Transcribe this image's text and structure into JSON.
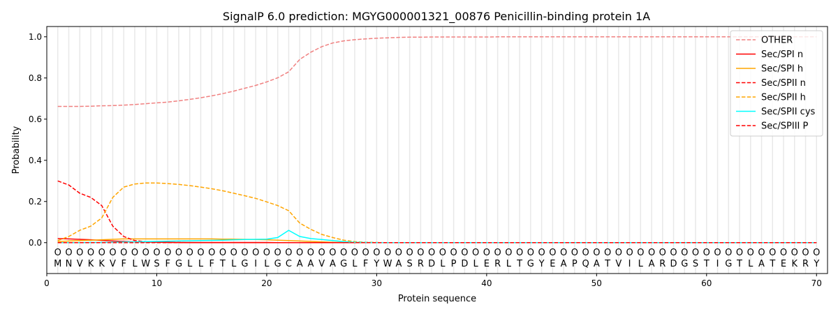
{
  "chart_data": {
    "type": "line",
    "title": "SignalP 6.0 prediction: MGYG000001321_00876 Penicillin-binding protein 1A",
    "xlabel": "Protein sequence",
    "ylabel": "Probability",
    "xlim": [
      0,
      71
    ],
    "ylim": [
      -0.15,
      1.05
    ],
    "xticks": [
      0,
      10,
      20,
      30,
      40,
      50,
      60,
      70
    ],
    "yticks": [
      "0.0",
      "0.2",
      "0.4",
      "0.6",
      "0.8",
      "1.0"
    ],
    "sequence": "MNVKKVFLWSFGLLFTLGILGCAAVAGLFYWASRDLPDLERLTGYEAPQATVILARDGSTIGTLATEKRY",
    "region_label": "O",
    "legend_position": "top-right",
    "series": [
      {
        "name": "OTHER",
        "color": "#f08080",
        "dash": true,
        "values": [
          0.662,
          0.662,
          0.662,
          0.663,
          0.665,
          0.666,
          0.668,
          0.671,
          0.675,
          0.679,
          0.683,
          0.689,
          0.696,
          0.704,
          0.713,
          0.724,
          0.736,
          0.75,
          0.764,
          0.781,
          0.801,
          0.83,
          0.89,
          0.925,
          0.952,
          0.97,
          0.98,
          0.986,
          0.99,
          0.993,
          0.995,
          0.997,
          0.998,
          0.998,
          0.999,
          0.999,
          0.999,
          0.999,
          0.999,
          0.999,
          1,
          1,
          1,
          1,
          1,
          1,
          1,
          1,
          1,
          1,
          1,
          1,
          1,
          1,
          1,
          1,
          1,
          1,
          1,
          1,
          1,
          1,
          1,
          1,
          1,
          1,
          1,
          1,
          1,
          1
        ]
      },
      {
        "name": "Sec/SPI n",
        "color": "#ff0000",
        "dash": false,
        "values": [
          0.02,
          0.018,
          0.016,
          0.014,
          0.011,
          0.008,
          0.006,
          0.004,
          0.003,
          0.002,
          0.002,
          0.001,
          0.001,
          0.001,
          0.001,
          0.001,
          0.001,
          0.001,
          0.001,
          0.001,
          0,
          0,
          0,
          0,
          0,
          0,
          0,
          0,
          0,
          0,
          0,
          0,
          0,
          0,
          0,
          0,
          0,
          0,
          0,
          0,
          0,
          0,
          0,
          0,
          0,
          0,
          0,
          0,
          0,
          0,
          0,
          0,
          0,
          0,
          0,
          0,
          0,
          0,
          0,
          0,
          0,
          0,
          0,
          0,
          0,
          0,
          0,
          0,
          0,
          0
        ]
      },
      {
        "name": "Sec/SPI h",
        "color": "#ffa500",
        "dash": false,
        "values": [
          0.005,
          0.008,
          0.01,
          0.012,
          0.014,
          0.016,
          0.018,
          0.018,
          0.018,
          0.018,
          0.018,
          0.018,
          0.018,
          0.018,
          0.018,
          0.017,
          0.017,
          0.016,
          0.015,
          0.014,
          0.012,
          0.01,
          0.008,
          0.006,
          0.004,
          0.002,
          0.001,
          0,
          0,
          0,
          0,
          0,
          0,
          0,
          0,
          0,
          0,
          0,
          0,
          0,
          0,
          0,
          0,
          0,
          0,
          0,
          0,
          0,
          0,
          0,
          0,
          0,
          0,
          0,
          0,
          0,
          0,
          0,
          0,
          0,
          0,
          0,
          0,
          0,
          0,
          0,
          0,
          0,
          0,
          0
        ]
      },
      {
        "name": "Sec/SPII n",
        "color": "#ff0000",
        "dash": true,
        "values": [
          0.3,
          0.28,
          0.24,
          0.22,
          0.18,
          0.08,
          0.03,
          0.01,
          0.005,
          0.002,
          0.001,
          0.001,
          0,
          0,
          0,
          0,
          0,
          0,
          0,
          0,
          0,
          0,
          0,
          0,
          0,
          0,
          0,
          0,
          0,
          0,
          0,
          0,
          0,
          0,
          0,
          0,
          0,
          0,
          0,
          0,
          0,
          0,
          0,
          0,
          0,
          0,
          0,
          0,
          0,
          0,
          0,
          0,
          0,
          0,
          0,
          0,
          0,
          0,
          0,
          0,
          0,
          0,
          0,
          0,
          0,
          0,
          0,
          0,
          0,
          0
        ]
      },
      {
        "name": "Sec/SPII h",
        "color": "#ffa500",
        "dash": true,
        "values": [
          0.01,
          0.03,
          0.06,
          0.08,
          0.12,
          0.22,
          0.27,
          0.285,
          0.29,
          0.29,
          0.287,
          0.283,
          0.277,
          0.27,
          0.262,
          0.252,
          0.24,
          0.228,
          0.215,
          0.198,
          0.18,
          0.155,
          0.095,
          0.065,
          0.04,
          0.025,
          0.012,
          0.005,
          0.002,
          0.001,
          0,
          0,
          0,
          0,
          0,
          0,
          0,
          0,
          0,
          0,
          0,
          0,
          0,
          0,
          0,
          0,
          0,
          0,
          0,
          0,
          0,
          0,
          0,
          0,
          0,
          0,
          0,
          0,
          0,
          0,
          0,
          0,
          0,
          0,
          0,
          0,
          0,
          0,
          0,
          0
        ]
      },
      {
        "name": "Sec/SPII cys",
        "color": "#00ffff",
        "dash": false,
        "values": [
          0,
          0,
          0,
          0.001,
          0.001,
          0.002,
          0.003,
          0.004,
          0.005,
          0.006,
          0.007,
          0.008,
          0.009,
          0.01,
          0.011,
          0.012,
          0.014,
          0.015,
          0.016,
          0.017,
          0.025,
          0.06,
          0.03,
          0.02,
          0.015,
          0.01,
          0.005,
          0.002,
          0.001,
          0,
          0,
          0,
          0,
          0,
          0,
          0,
          0,
          0,
          0,
          0,
          0,
          0,
          0,
          0,
          0,
          0,
          0,
          0,
          0,
          0,
          0,
          0,
          0,
          0,
          0,
          0,
          0,
          0,
          0,
          0,
          0,
          0,
          0,
          0,
          0,
          0,
          0,
          0,
          0,
          0
        ]
      },
      {
        "name": "Sec/SPIII P",
        "color": "#ff0000",
        "dash": true,
        "values": [
          0,
          0,
          0,
          0,
          0,
          0,
          0,
          0,
          0,
          0,
          0,
          0,
          0,
          0,
          0,
          0,
          0,
          0,
          0,
          0,
          0,
          0,
          0,
          0,
          0,
          0,
          0,
          0,
          0,
          0,
          0,
          0,
          0,
          0,
          0,
          0,
          0,
          0,
          0,
          0,
          0,
          0,
          0,
          0,
          0,
          0,
          0,
          0,
          0,
          0,
          0,
          0,
          0,
          0,
          0,
          0,
          0,
          0,
          0,
          0,
          0,
          0,
          0,
          0,
          0,
          0,
          0,
          0,
          0,
          0
        ]
      }
    ]
  }
}
